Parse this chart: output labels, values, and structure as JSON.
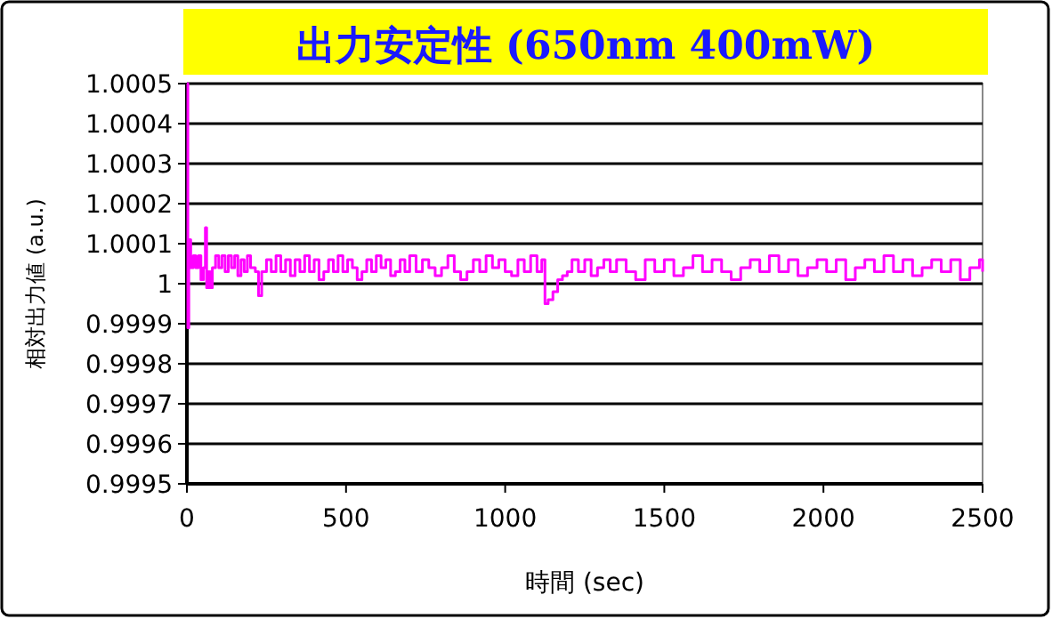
{
  "chart_data": {
    "type": "step",
    "title": "出力安定性 (650nm 400mW)",
    "xlabel": "時間 (sec)",
    "ylabel": "相対出力値 (a.u.)",
    "xlim": [
      0,
      2500
    ],
    "xticks": [
      0,
      500,
      1000,
      1500,
      2000,
      2500
    ],
    "ylim": [
      0.9995,
      1.0005
    ],
    "yticks": [
      {
        "value": 0.9995,
        "label": "0.9995"
      },
      {
        "value": 0.9996,
        "label": "0.9996"
      },
      {
        "value": 0.9997,
        "label": "0.9997"
      },
      {
        "value": 0.9998,
        "label": "0.9998"
      },
      {
        "value": 0.9999,
        "label": "0.9999"
      },
      {
        "value": 1,
        "label": "1"
      },
      {
        "value": 1.0001,
        "label": "1.0001"
      },
      {
        "value": 1.0002,
        "label": "1.0002"
      },
      {
        "value": 1.0003,
        "label": "1.0003"
      },
      {
        "value": 1.0004,
        "label": "1.0004"
      },
      {
        "value": 1.0005,
        "label": "1.0005"
      }
    ],
    "grid": "y",
    "line_style": "solid",
    "marker": "none",
    "series": [
      {
        "color": "#ff00ff",
        "x": [
          0,
          3,
          6,
          12,
          20,
          28,
          36,
          44,
          52,
          58,
          62,
          68,
          74,
          80,
          90,
          100,
          110,
          120,
          130,
          140,
          150,
          160,
          170,
          180,
          190,
          200,
          215,
          225,
          235,
          250,
          265,
          280,
          295,
          310,
          325,
          340,
          355,
          370,
          385,
          400,
          415,
          430,
          445,
          460,
          475,
          490,
          505,
          520,
          535,
          550,
          565,
          580,
          595,
          610,
          625,
          640,
          655,
          670,
          685,
          700,
          720,
          740,
          760,
          780,
          800,
          820,
          840,
          860,
          880,
          900,
          920,
          940,
          960,
          980,
          1000,
          1020,
          1040,
          1060,
          1080,
          1100,
          1115,
          1125,
          1135,
          1150,
          1165,
          1180,
          1195,
          1210,
          1230,
          1250,
          1270,
          1290,
          1310,
          1330,
          1350,
          1380,
          1410,
          1440,
          1470,
          1500,
          1530,
          1560,
          1590,
          1620,
          1650,
          1680,
          1710,
          1740,
          1770,
          1800,
          1830,
          1860,
          1890,
          1920,
          1950,
          1980,
          2010,
          2040,
          2070,
          2100,
          2130,
          2160,
          2190,
          2220,
          2250,
          2280,
          2310,
          2340,
          2370,
          2400,
          2430,
          2460,
          2490,
          2500
        ],
        "values": [
          1.0005,
          0.99989,
          1.00011,
          1.00004,
          1.00007,
          1.00004,
          1.00007,
          1.00001,
          1.00004,
          1.00014,
          0.99999,
          1.00003,
          0.99999,
          1.00004,
          1.00007,
          1.00004,
          1.00007,
          1.00003,
          1.00007,
          1.00004,
          1.00007,
          1.00002,
          1.00006,
          1.00003,
          1.00007,
          1.00004,
          1.00003,
          0.99997,
          1.00003,
          1.00006,
          1.00003,
          1.00007,
          1.00003,
          1.00006,
          1.00002,
          1.00006,
          1.00003,
          1.00007,
          1.00003,
          1.00006,
          1.00001,
          1.00003,
          1.00006,
          1.00003,
          1.00007,
          1.00003,
          1.00006,
          1.00004,
          1.00001,
          1.00003,
          1.00006,
          1.00003,
          1.00007,
          1.00004,
          1.00006,
          1.00002,
          1.00003,
          1.00006,
          1.00003,
          1.00007,
          1.00003,
          1.00006,
          1.00004,
          1.00002,
          1.00004,
          1.00007,
          1.00003,
          1.00001,
          1.00003,
          1.00006,
          1.00003,
          1.00007,
          1.00004,
          1.00006,
          1.00003,
          1.00002,
          1.00006,
          1.00003,
          1.00007,
          1.00003,
          1.00006,
          0.99995,
          0.99996,
          0.99998,
          1.00001,
          1.00002,
          1.00003,
          1.00006,
          1.00003,
          1.00006,
          1.00002,
          1.00004,
          1.00006,
          1.00003,
          1.00006,
          1.00003,
          1.00001,
          1.00006,
          1.00003,
          1.00006,
          1.00002,
          1.00004,
          1.00007,
          1.00003,
          1.00006,
          1.00003,
          1.00001,
          1.00004,
          1.00006,
          1.00003,
          1.00007,
          1.00003,
          1.00006,
          1.00002,
          1.00004,
          1.00006,
          1.00003,
          1.00006,
          1.00001,
          1.00004,
          1.00006,
          1.00003,
          1.00007,
          1.00003,
          1.00006,
          1.00002,
          1.00004,
          1.00006,
          1.00003,
          1.00006,
          1.00001,
          1.00004,
          1.00006,
          1.00003
        ]
      }
    ]
  }
}
